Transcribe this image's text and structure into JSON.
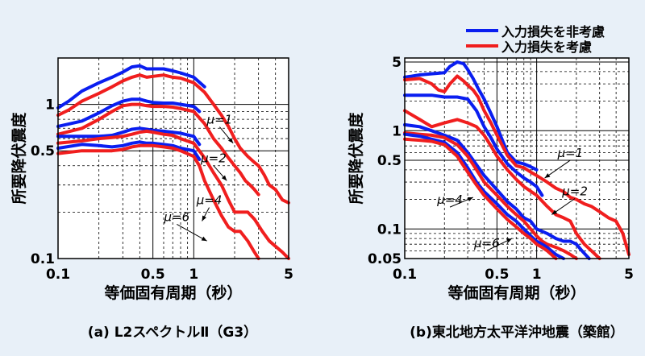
{
  "legend": {
    "placement": "top-right",
    "items": [
      {
        "label": "入力損失を非考慮",
        "color": "#0a1ef0"
      },
      {
        "label": "入力損失を考慮",
        "color": "#f01e1e"
      }
    ]
  },
  "chart_data": [
    {
      "type": "line",
      "title": "(a) L2スペクトルⅡ（G3）",
      "xlabel": "等価固有周期（秒）",
      "ylabel": "所要降伏震度",
      "x_scale": "log",
      "y_scale": "log",
      "xlim": [
        0.1,
        5
      ],
      "ylim": [
        0.1,
        2.0
      ],
      "grid": true,
      "xticks": [
        {
          "v": 0.1,
          "t": "0.1"
        },
        {
          "v": 0.5,
          "t": "0.5"
        },
        {
          "v": 1,
          "t": "1"
        },
        {
          "v": 5,
          "t": "5"
        }
      ],
      "yticks": [
        {
          "v": 0.1,
          "t": "0.1"
        },
        {
          "v": 0.5,
          "t": "0.5"
        },
        {
          "v": 1,
          "t": "1"
        }
      ],
      "annotations": [
        {
          "text": "μ=1",
          "x": 1.55,
          "y": 0.75,
          "ax": 1.95,
          "ay": 0.56
        },
        {
          "text": "μ=2",
          "x": 1.4,
          "y": 0.42,
          "ax": 1.75,
          "ay": 0.32
        },
        {
          "text": "μ=4",
          "x": 1.3,
          "y": 0.225,
          "ax": 1.15,
          "ay": 0.175
        },
        {
          "text": "μ=6",
          "x": 0.75,
          "y": 0.175,
          "ax": 1.25,
          "ay": 0.13
        }
      ],
      "series": [
        {
          "mu": 1,
          "color": "#0a1ef0",
          "x": [
            0.1,
            0.12,
            0.15,
            0.2,
            0.25,
            0.3,
            0.35,
            0.4,
            0.45,
            0.5,
            0.6,
            0.7,
            0.8,
            1.0,
            1.2
          ],
          "y": [
            0.95,
            1.05,
            1.22,
            1.38,
            1.5,
            1.62,
            1.75,
            1.78,
            1.7,
            1.7,
            1.7,
            1.65,
            1.6,
            1.5,
            1.3
          ]
        },
        {
          "mu": 1,
          "color": "#f01e1e",
          "x": [
            0.1,
            0.12,
            0.15,
            0.2,
            0.25,
            0.3,
            0.35,
            0.4,
            0.45,
            0.5,
            0.6,
            0.7,
            0.8,
            1.0,
            1.2,
            1.4,
            1.6,
            1.8,
            2.0,
            2.2,
            2.5,
            2.8,
            3.0,
            3.3,
            3.6,
            4.0,
            4.5,
            5.0
          ],
          "y": [
            0.85,
            0.92,
            1.05,
            1.18,
            1.3,
            1.42,
            1.5,
            1.55,
            1.5,
            1.52,
            1.55,
            1.5,
            1.48,
            1.38,
            1.2,
            1.0,
            0.85,
            0.72,
            0.6,
            0.52,
            0.46,
            0.42,
            0.4,
            0.35,
            0.3,
            0.28,
            0.24,
            0.23
          ]
        },
        {
          "mu": 2,
          "color": "#0a1ef0",
          "x": [
            0.1,
            0.15,
            0.2,
            0.25,
            0.3,
            0.35,
            0.4,
            0.45,
            0.5,
            0.6,
            0.7,
            0.8,
            1.0,
            1.1
          ],
          "y": [
            0.72,
            0.78,
            0.88,
            0.98,
            1.05,
            1.08,
            1.08,
            1.05,
            1.03,
            1.02,
            1.02,
            1.0,
            0.97,
            0.9
          ]
        },
        {
          "mu": 2,
          "color": "#f01e1e",
          "x": [
            0.1,
            0.15,
            0.2,
            0.25,
            0.3,
            0.35,
            0.4,
            0.45,
            0.5,
            0.6,
            0.7,
            0.8,
            1.0,
            1.2,
            1.4,
            1.6,
            1.8,
            2.0,
            2.2,
            2.4,
            2.6,
            2.8,
            3.0
          ],
          "y": [
            0.64,
            0.7,
            0.8,
            0.9,
            0.98,
            1.0,
            1.0,
            0.98,
            0.97,
            0.97,
            0.96,
            0.94,
            0.9,
            0.75,
            0.6,
            0.52,
            0.45,
            0.4,
            0.36,
            0.32,
            0.3,
            0.28,
            0.26
          ]
        },
        {
          "mu": 4,
          "color": "#0a1ef0",
          "x": [
            0.1,
            0.15,
            0.2,
            0.25,
            0.3,
            0.35,
            0.4,
            0.45,
            0.5,
            0.6,
            0.7,
            0.8,
            1.0,
            1.1
          ],
          "y": [
            0.62,
            0.62,
            0.62,
            0.63,
            0.66,
            0.69,
            0.7,
            0.69,
            0.68,
            0.67,
            0.66,
            0.65,
            0.62,
            0.55
          ]
        },
        {
          "mu": 4,
          "color": "#f01e1e",
          "x": [
            0.1,
            0.15,
            0.2,
            0.25,
            0.3,
            0.35,
            0.4,
            0.45,
            0.5,
            0.6,
            0.7,
            0.8,
            1.0,
            1.2,
            1.4,
            1.6,
            1.8,
            2.0,
            2.2,
            2.5,
            2.8,
            3.2,
            3.6,
            4.0,
            4.5,
            5.0
          ],
          "y": [
            0.56,
            0.58,
            0.6,
            0.61,
            0.62,
            0.64,
            0.66,
            0.67,
            0.66,
            0.64,
            0.63,
            0.6,
            0.56,
            0.45,
            0.36,
            0.3,
            0.24,
            0.2,
            0.2,
            0.2,
            0.18,
            0.15,
            0.13,
            0.12,
            0.11,
            0.1
          ]
        },
        {
          "mu": 6,
          "color": "#0a1ef0",
          "x": [
            0.1,
            0.15,
            0.2,
            0.25,
            0.3,
            0.35,
            0.4,
            0.45,
            0.5,
            0.6,
            0.7,
            0.8,
            1.0,
            1.1
          ],
          "y": [
            0.52,
            0.55,
            0.54,
            0.53,
            0.54,
            0.56,
            0.57,
            0.56,
            0.56,
            0.55,
            0.54,
            0.52,
            0.5,
            0.44
          ]
        },
        {
          "mu": 6,
          "color": "#f01e1e",
          "x": [
            0.1,
            0.15,
            0.2,
            0.25,
            0.3,
            0.35,
            0.4,
            0.45,
            0.5,
            0.6,
            0.7,
            0.8,
            1.0,
            1.1,
            1.2,
            1.4,
            1.6,
            1.8,
            2.0,
            2.2,
            2.5,
            2.8,
            3.0
          ],
          "y": [
            0.48,
            0.5,
            0.5,
            0.5,
            0.51,
            0.53,
            0.54,
            0.54,
            0.54,
            0.53,
            0.52,
            0.5,
            0.46,
            0.4,
            0.32,
            0.24,
            0.19,
            0.16,
            0.15,
            0.15,
            0.13,
            0.11,
            0.1
          ]
        }
      ]
    },
    {
      "type": "line",
      "title": "(b)東北地方太平洋沖地震（築館）",
      "xlabel": "等価固有周期（秒）",
      "ylabel": "所要降伏震度",
      "x_scale": "log",
      "y_scale": "log",
      "xlim": [
        0.1,
        5
      ],
      "ylim": [
        0.05,
        5.5
      ],
      "grid": true,
      "xticks": [
        {
          "v": 0.1,
          "t": "0.1"
        },
        {
          "v": 0.5,
          "t": "0.5"
        },
        {
          "v": 1,
          "t": "1"
        },
        {
          "v": 5,
          "t": "5"
        }
      ],
      "yticks": [
        {
          "v": 0.05,
          "t": "0.05"
        },
        {
          "v": 0.1,
          "t": "0.1"
        },
        {
          "v": 0.5,
          "t": "0.5"
        },
        {
          "v": 1,
          "t": "1"
        },
        {
          "v": 5,
          "t": "5"
        }
      ],
      "annotations": [
        {
          "text": "μ=1",
          "x": 1.8,
          "y": 0.54,
          "ax": 1.15,
          "ay": 0.33
        },
        {
          "text": "μ=2",
          "x": 1.95,
          "y": 0.22,
          "ax": 1.3,
          "ay": 0.14
        },
        {
          "text": "μ=4",
          "x": 0.22,
          "y": 0.18,
          "ax": 0.33,
          "ay": 0.21
        },
        {
          "text": "μ=6",
          "x": 0.42,
          "y": 0.065,
          "ax": 0.65,
          "ay": 0.08
        }
      ],
      "series": [
        {
          "mu": 1,
          "color": "#0a1ef0",
          "x": [
            0.1,
            0.13,
            0.16,
            0.2,
            0.22,
            0.25,
            0.28,
            0.3,
            0.33,
            0.36,
            0.4,
            0.45,
            0.5,
            0.55,
            0.6,
            0.7,
            0.8,
            0.9,
            1.0
          ],
          "y": [
            3.5,
            3.7,
            3.8,
            3.9,
            4.5,
            5.0,
            4.8,
            4.2,
            3.4,
            2.7,
            2.1,
            1.5,
            1.1,
            0.8,
            0.6,
            0.48,
            0.46,
            0.43,
            0.4
          ]
        },
        {
          "mu": 1,
          "color": "#f01e1e",
          "x": [
            0.1,
            0.13,
            0.16,
            0.18,
            0.2,
            0.22,
            0.25,
            0.28,
            0.3,
            0.33,
            0.36,
            0.4,
            0.45,
            0.5,
            0.6,
            0.7,
            0.8,
            0.9,
            1.0,
            1.2,
            1.4,
            1.6,
            1.8,
            2.0,
            2.3,
            2.6,
            3.0,
            3.5,
            4.0,
            4.5,
            5.0
          ],
          "y": [
            3.3,
            3.4,
            3.0,
            2.6,
            2.5,
            3.0,
            3.6,
            3.2,
            2.9,
            2.6,
            2.2,
            1.6,
            1.2,
            0.9,
            0.56,
            0.44,
            0.42,
            0.38,
            0.35,
            0.3,
            0.26,
            0.24,
            0.21,
            0.2,
            0.18,
            0.17,
            0.15,
            0.13,
            0.12,
            0.09,
            0.055
          ]
        },
        {
          "mu": 2,
          "color": "#0a1ef0",
          "x": [
            0.1,
            0.13,
            0.16,
            0.2,
            0.25,
            0.3,
            0.35,
            0.4,
            0.45,
            0.5,
            0.6,
            0.7,
            0.8,
            0.9,
            1.0,
            1.1
          ],
          "y": [
            2.3,
            2.3,
            2.3,
            2.2,
            2.2,
            2.1,
            1.6,
            1.1,
            0.85,
            0.65,
            0.46,
            0.38,
            0.33,
            0.3,
            0.27,
            0.22
          ]
        },
        {
          "mu": 2,
          "color": "#f01e1e",
          "x": [
            0.1,
            0.13,
            0.16,
            0.2,
            0.25,
            0.3,
            0.35,
            0.4,
            0.45,
            0.5,
            0.6,
            0.7,
            0.8,
            1.0,
            1.2,
            1.4,
            1.6,
            1.8,
            2.0,
            2.3,
            2.6,
            3.0
          ],
          "y": [
            1.6,
            1.3,
            1.1,
            1.2,
            1.3,
            1.2,
            1.1,
            0.9,
            0.7,
            0.55,
            0.4,
            0.32,
            0.27,
            0.22,
            0.17,
            0.14,
            0.13,
            0.12,
            0.09,
            0.07,
            0.06,
            0.05
          ]
        },
        {
          "mu": 4,
          "color": "#0a1ef0",
          "x": [
            0.1,
            0.13,
            0.16,
            0.2,
            0.25,
            0.3,
            0.35,
            0.4,
            0.5,
            0.6,
            0.7,
            0.8,
            0.9,
            1.0,
            1.2,
            1.4,
            1.6,
            1.8,
            2.0,
            2.2,
            2.5
          ],
          "y": [
            1.15,
            1.1,
            1.0,
            0.9,
            0.8,
            0.6,
            0.45,
            0.35,
            0.25,
            0.19,
            0.16,
            0.13,
            0.12,
            0.1,
            0.09,
            0.08,
            0.075,
            0.075,
            0.07,
            0.06,
            0.05
          ]
        },
        {
          "mu": 4,
          "color": "#f01e1e",
          "x": [
            0.1,
            0.13,
            0.16,
            0.2,
            0.25,
            0.3,
            0.35,
            0.4,
            0.5,
            0.6,
            0.7,
            0.8,
            0.9,
            1.0,
            1.1,
            1.2,
            1.4,
            1.6,
            1.8,
            2.0
          ],
          "y": [
            0.95,
            0.92,
            0.9,
            0.85,
            0.72,
            0.55,
            0.4,
            0.3,
            0.22,
            0.17,
            0.14,
            0.12,
            0.1,
            0.085,
            0.075,
            0.07,
            0.065,
            0.06,
            0.055,
            0.05
          ]
        },
        {
          "mu": 6,
          "color": "#0a1ef0",
          "x": [
            0.1,
            0.13,
            0.16,
            0.2,
            0.25,
            0.3,
            0.35,
            0.4,
            0.5,
            0.6,
            0.7,
            0.8,
            0.9,
            1.0,
            1.1,
            1.2,
            1.4,
            1.6
          ],
          "y": [
            0.92,
            0.88,
            0.82,
            0.76,
            0.6,
            0.42,
            0.3,
            0.24,
            0.18,
            0.14,
            0.12,
            0.1,
            0.085,
            0.075,
            0.07,
            0.065,
            0.055,
            0.05
          ]
        },
        {
          "mu": 6,
          "color": "#f01e1e",
          "x": [
            0.1,
            0.13,
            0.16,
            0.2,
            0.25,
            0.3,
            0.35,
            0.4,
            0.5,
            0.6,
            0.7,
            0.8,
            0.9,
            1.0,
            1.1,
            1.2,
            1.4
          ],
          "y": [
            0.82,
            0.8,
            0.78,
            0.72,
            0.55,
            0.38,
            0.28,
            0.22,
            0.16,
            0.125,
            0.105,
            0.09,
            0.08,
            0.07,
            0.065,
            0.06,
            0.05
          ]
        }
      ]
    }
  ]
}
